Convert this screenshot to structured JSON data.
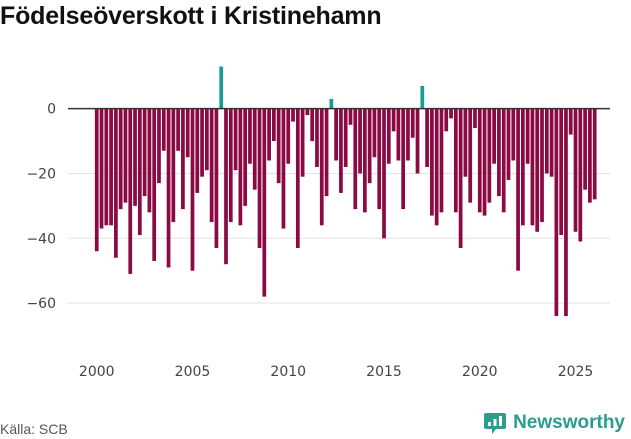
{
  "title": "Födelseöverskott i Kristinehamn",
  "source": "Källa: SCB",
  "brand": "Newsworthy",
  "colors": {
    "negative": "#8b0a43",
    "positive": "#1a9c94",
    "brand": "#2a9d8f"
  },
  "chart_data": {
    "type": "bar",
    "title": "Födelseöverskott i Kristinehamn",
    "xlabel": "",
    "ylabel": "",
    "x_start": 2000.0,
    "x_step": 0.25,
    "xlim": [
      1998.5,
      2026.8
    ],
    "ylim": [
      -72,
      15
    ],
    "y_ticks": [
      0,
      -20,
      -40,
      -60
    ],
    "x_ticks": [
      2000,
      2005,
      2010,
      2015,
      2020,
      2025
    ],
    "values": [
      -44,
      -37,
      -36,
      -36,
      -46,
      -31,
      -29,
      -51,
      -30,
      -39,
      -27,
      -32,
      -47,
      -23,
      -13,
      -49,
      -35,
      -13,
      -31,
      -15,
      -50,
      -26,
      -21,
      -19,
      -35,
      -43,
      13,
      -48,
      -35,
      -19,
      -36,
      -30,
      -17,
      -25,
      -43,
      -58,
      -16,
      -10,
      -23,
      -37,
      -17,
      -4,
      -43,
      -21,
      -2,
      -10,
      -18,
      -36,
      -27,
      3,
      -16,
      -26,
      -18,
      -5,
      -31,
      -20,
      -32,
      -23,
      -15,
      -31,
      -40,
      -17,
      -7,
      -16,
      -31,
      -16,
      -9,
      -20,
      7,
      -18,
      -33,
      -36,
      -32,
      -7,
      -3,
      -32,
      -43,
      -21,
      -29,
      -6,
      -32,
      -33,
      -29,
      -17,
      -27,
      -32,
      -22,
      -16,
      -50,
      -36,
      -17,
      -36,
      -38,
      -35,
      -20,
      -21,
      -64,
      -39,
      -64,
      -8,
      -38,
      -41,
      -25,
      -29,
      -28
    ]
  }
}
